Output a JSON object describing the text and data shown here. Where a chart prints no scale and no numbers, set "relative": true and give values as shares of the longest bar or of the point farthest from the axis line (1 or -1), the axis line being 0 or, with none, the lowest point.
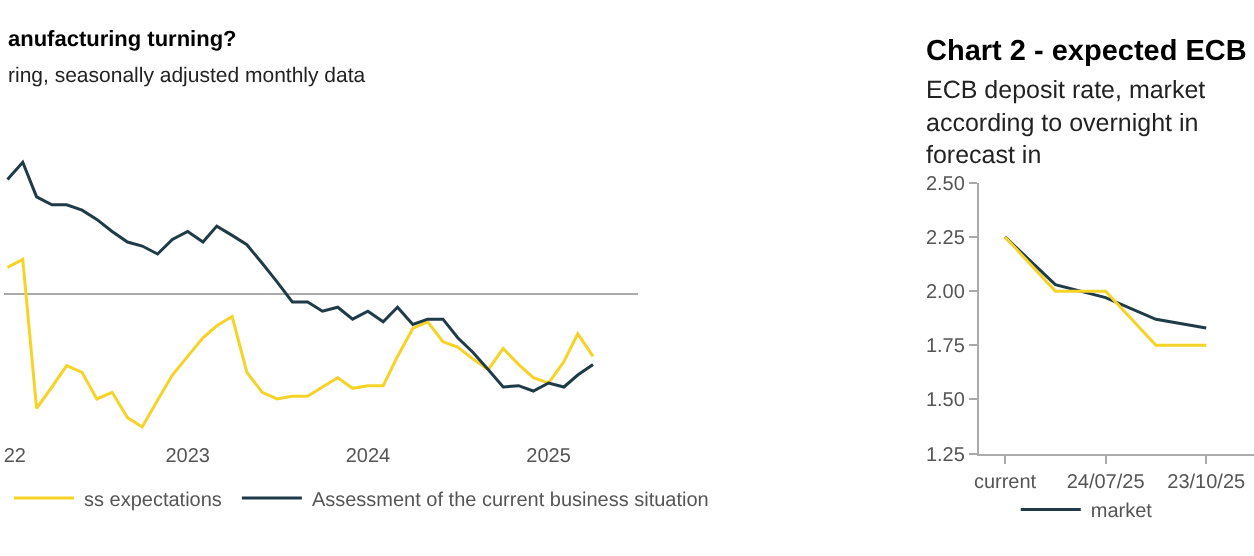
{
  "chart_data": [
    {
      "type": "line",
      "title": "anufacturing turning?",
      "subtitle": "ring, seasonally adjusted monthly data",
      "relative": true,
      "legend": "bottom",
      "x": [
        "2022-01",
        "2022-02",
        "2022-03",
        "2022-04",
        "2022-05",
        "2022-06",
        "2022-07",
        "2022-08",
        "2022-09",
        "2022-10",
        "2022-11",
        "2022-12",
        "2023-01",
        "2023-02",
        "2023-03",
        "2023-04",
        "2023-05",
        "2023-06",
        "2023-07",
        "2023-08",
        "2023-09",
        "2023-10",
        "2023-11",
        "2023-12",
        "2024-01",
        "2024-02",
        "2024-03",
        "2024-04",
        "2024-05",
        "2024-06",
        "2024-07",
        "2024-08",
        "2024-09",
        "2024-10",
        "2024-11",
        "2024-12",
        "2025-01",
        "2025-02",
        "2025-03",
        "2025-04"
      ],
      "xlim": [
        "2021-12-25",
        "2025-07"
      ],
      "xticks": [
        {
          "value": "2022-01-16",
          "label": "22"
        },
        {
          "value": "2023-01-01",
          "label": "2023"
        },
        {
          "value": "2024-01-01",
          "label": "2024"
        },
        {
          "value": "2025-01-01",
          "label": "2025"
        }
      ],
      "series": [
        {
          "name": "ss expectations",
          "color": "#f5d327",
          "values": [
            0.2,
            0.26,
            -0.86,
            -0.7,
            -0.54,
            -0.59,
            -0.79,
            -0.74,
            -0.93,
            -1,
            -0.8,
            -0.61,
            -0.47,
            -0.33,
            -0.24,
            -0.17,
            -0.59,
            -0.74,
            -0.79,
            -0.77,
            -0.77,
            -0.7,
            -0.63,
            -0.71,
            -0.69,
            -0.69,
            -0.47,
            -0.26,
            -0.21,
            -0.36,
            -0.4,
            -0.49,
            -0.57,
            -0.41,
            -0.53,
            -0.63,
            -0.67,
            -0.51,
            -0.3,
            -0.47
          ]
        },
        {
          "name": "Assessment of the current business situation",
          "color": "#1f3b48",
          "values": [
            0.86,
            0.99,
            0.73,
            0.67,
            0.67,
            0.63,
            0.56,
            0.47,
            0.39,
            0.36,
            0.3,
            0.41,
            0.47,
            0.39,
            0.51,
            0.44,
            0.37,
            0.23,
            0.09,
            -0.06,
            -0.06,
            -0.13,
            -0.1,
            -0.19,
            -0.13,
            -0.21,
            -0.1,
            -0.23,
            -0.19,
            -0.19,
            -0.33,
            -0.44,
            -0.57,
            -0.7,
            -0.69,
            -0.73,
            -0.67,
            -0.7,
            -0.61,
            -0.53
          ]
        }
      ]
    },
    {
      "type": "line",
      "title": "Chart 2 - expected ECB",
      "subtitle": "ECB deposit rate, market\naccording to overnight in\nforecast in",
      "legend": "bottom",
      "categories": [
        "current",
        null,
        "24/07/25",
        null,
        "23/10/25"
      ],
      "ylim": [
        1.25,
        2.5
      ],
      "yticks": [
        1.25,
        {
          "value": 1.5,
          "label": "1.50"
        },
        1.75,
        {
          "value": 2.0,
          "label": "2.00"
        },
        2.25,
        {
          "value": 2.5,
          "label": "2.50"
        }
      ],
      "series": [
        {
          "name": "market",
          "color": "#1f3b48",
          "values": [
            2.25,
            2.03,
            1.97,
            1.87,
            1.83
          ]
        },
        {
          "color": "#f5d327",
          "values": [
            2.25,
            2.0,
            2.0,
            1.75,
            1.75
          ]
        }
      ]
    }
  ]
}
